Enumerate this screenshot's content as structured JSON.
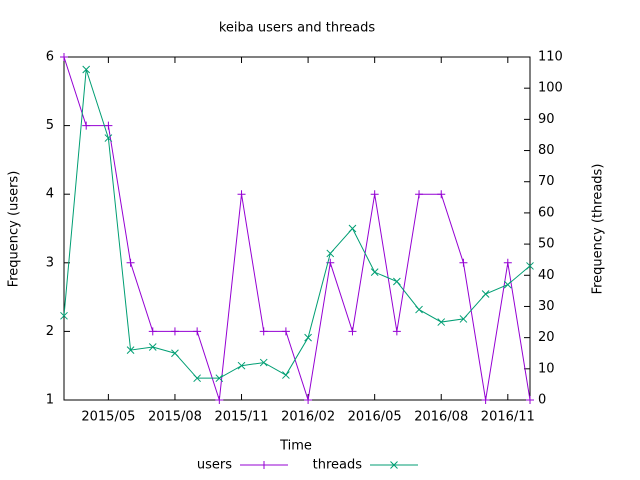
{
  "chart_data": {
    "type": "line",
    "title": "keiba users and threads",
    "xlabel": "Time",
    "ylabel": "Frequency (users)",
    "y2label": "Frequency (threads)",
    "x": [
      "2015/03",
      "2015/04",
      "2015/05",
      "2015/06",
      "2015/07",
      "2015/08",
      "2015/09",
      "2015/10",
      "2015/11",
      "2015/12",
      "2016/01",
      "2016/02",
      "2016/03",
      "2016/04",
      "2016/05",
      "2016/06",
      "2016/07",
      "2016/08",
      "2016/09",
      "2016/10",
      "2016/11",
      "2016/12"
    ],
    "xticks": [
      "2015/05",
      "2015/08",
      "2015/11",
      "2016/02",
      "2016/05",
      "2016/08",
      "2016/11"
    ],
    "ylim": [
      1,
      6
    ],
    "yticks": [
      1,
      2,
      3,
      4,
      5,
      6
    ],
    "y2lim": [
      0,
      110
    ],
    "y2ticks": [
      0,
      10,
      20,
      30,
      40,
      50,
      60,
      70,
      80,
      90,
      100,
      110
    ],
    "legend": "bottom",
    "series": [
      {
        "name": "users",
        "color": "#9400d3",
        "marker": "plus",
        "values": [
          6,
          5,
          5,
          3,
          2,
          2,
          2,
          1,
          4,
          2,
          2,
          1,
          3,
          2,
          4,
          2,
          4,
          4,
          3,
          1,
          3,
          1
        ]
      },
      {
        "name": "threads",
        "color": "#009e73",
        "marker": "cross",
        "axis": "y2",
        "values": [
          27,
          106,
          84,
          16,
          17,
          15,
          7,
          7,
          11,
          12,
          8,
          20,
          47,
          55,
          41,
          38,
          29,
          25,
          26,
          34,
          37,
          43
        ]
      }
    ]
  }
}
